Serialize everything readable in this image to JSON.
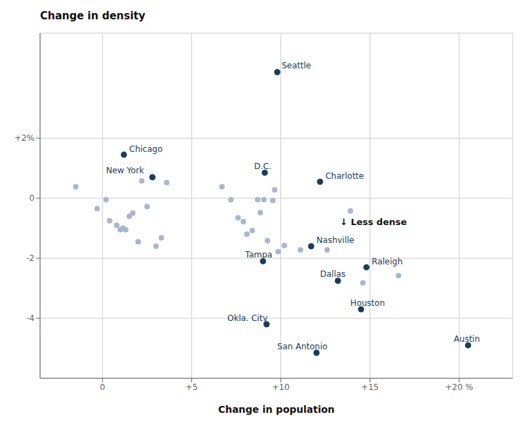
{
  "chart_data": {
    "type": "scatter",
    "x_label": "Change in population",
    "y_label": "Change in density",
    "annotation": "↓ Less dense",
    "xlim": [
      -3.5,
      23
    ],
    "ylim": [
      -6.0,
      5.5
    ],
    "xticks": [
      0,
      {
        "value": 5,
        "label": "+5"
      },
      {
        "value": 10,
        "label": "+10"
      },
      {
        "value": 15,
        "label": "+15"
      },
      {
        "value": 20,
        "label": "+20 %"
      }
    ],
    "yticks": [
      -4,
      -2,
      0,
      {
        "value": 2,
        "label": "+2%"
      }
    ],
    "grid": true,
    "series": [
      {
        "color": "#a8b8cc",
        "x": [
          -1.5,
          -0.3,
          0.2,
          0.4,
          0.8,
          1.0,
          1.15,
          1.3,
          1.5,
          1.7,
          2.0,
          2.2,
          2.5,
          3.0,
          3.3,
          3.6,
          6.7,
          7.2,
          7.6,
          7.9,
          8.1,
          8.4,
          8.7,
          8.85,
          9.05,
          9.25,
          9.55,
          9.65,
          9.85,
          10.2,
          11.1,
          12.6,
          13.9,
          14.6,
          16.6
        ],
        "values": [
          0.38,
          -0.35,
          -0.05,
          -0.75,
          -0.9,
          -1.05,
          -1.0,
          -1.05,
          -0.6,
          -0.5,
          -1.45,
          0.58,
          -0.28,
          -1.6,
          -1.32,
          0.52,
          0.38,
          -0.05,
          -0.65,
          -0.78,
          -1.2,
          -1.08,
          -0.05,
          -0.48,
          -0.05,
          -1.42,
          -0.08,
          0.28,
          -1.78,
          -1.58,
          -1.72,
          -1.72,
          -0.42,
          -2.82,
          -2.58
        ]
      },
      {
        "color": "#1c3d5a",
        "x": [
          9.8,
          1.2,
          2.8,
          9.1,
          12.2,
          11.7,
          9.0,
          14.8,
          13.2,
          14.5,
          9.2,
          12.0,
          20.5
        ],
        "values": [
          4.2,
          1.45,
          0.7,
          0.85,
          0.55,
          -1.6,
          -2.1,
          -2.3,
          -2.75,
          -3.7,
          -4.2,
          -5.15,
          -4.9
        ],
        "labels": [
          "Seattle",
          "Chicago",
          "New York",
          "D.C.",
          "Charlotte",
          "Nashville",
          "Tampa",
          "Raleigh",
          "Dallas",
          "Houston",
          "Okla. City",
          "San Antonio",
          "Austin"
        ]
      }
    ]
  }
}
